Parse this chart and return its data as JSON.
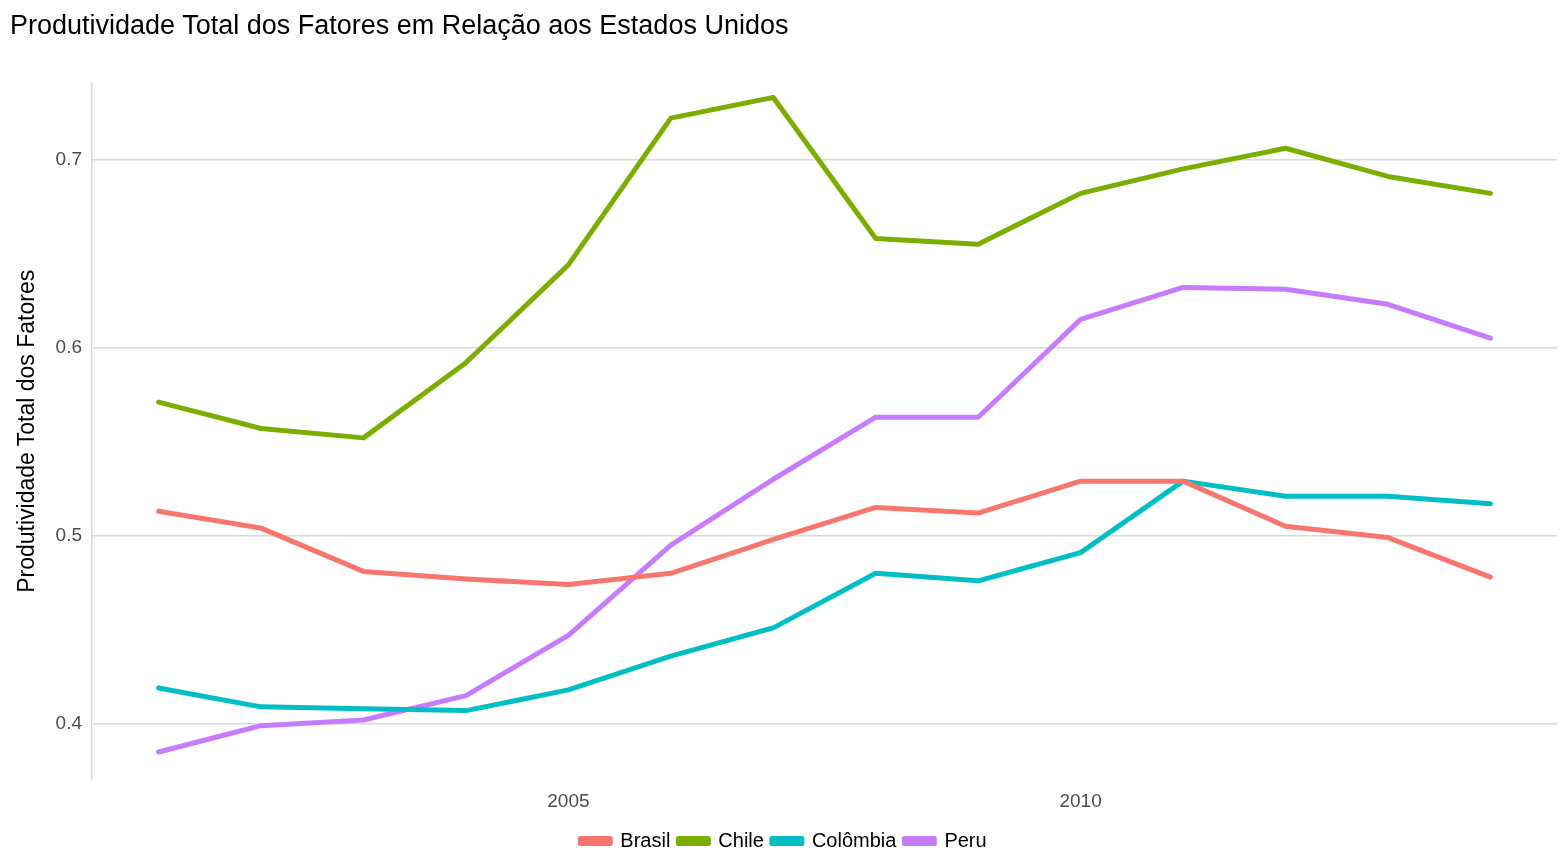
{
  "chart_data": {
    "type": "line",
    "title": "Produtividade Total dos Fatores em Relação aos Estados Unidos",
    "ylabel": "Produtividade Total dos Fatores",
    "x": [
      2001,
      2002,
      2003,
      2004,
      2005,
      2006,
      2007,
      2008,
      2009,
      2010,
      2011,
      2012,
      2013,
      2014
    ],
    "series": [
      {
        "name": "Brasil",
        "color": "#f8766d",
        "values": [
          0.513,
          0.504,
          0.481,
          0.477,
          0.474,
          0.48,
          0.498,
          0.515,
          0.512,
          0.529,
          0.529,
          0.505,
          0.499,
          0.478
        ]
      },
      {
        "name": "Chile",
        "color": "#7cae00",
        "values": [
          0.571,
          0.557,
          0.552,
          0.592,
          0.644,
          0.722,
          0.733,
          0.658,
          0.655,
          0.682,
          0.695,
          0.706,
          0.691,
          0.682
        ]
      },
      {
        "name": "Colômbia",
        "color": "#00bfc4",
        "values": [
          0.419,
          0.409,
          0.408,
          0.407,
          0.418,
          0.436,
          0.451,
          0.48,
          0.476,
          0.491,
          0.529,
          0.521,
          0.521,
          0.517
        ]
      },
      {
        "name": "Peru",
        "color": "#c77cff",
        "values": [
          0.385,
          0.399,
          0.402,
          0.415,
          0.447,
          0.495,
          0.53,
          0.563,
          0.563,
          0.615,
          0.632,
          0.631,
          0.623,
          0.605
        ]
      }
    ],
    "xlim": [
      2000.35,
      2014.65
    ],
    "xticks": [
      2005,
      2010
    ],
    "ylim": [
      0.37,
      0.741
    ],
    "yticks": [
      {
        "value": 0.4,
        "label": "0.4"
      },
      {
        "value": 0.5,
        "label": "0.5"
      },
      {
        "value": 0.6,
        "label": "0.6"
      },
      {
        "value": 0.7,
        "label": "0.7"
      }
    ],
    "grid": "y",
    "legend": "bottom",
    "marker": "none",
    "line_style": "solid"
  }
}
